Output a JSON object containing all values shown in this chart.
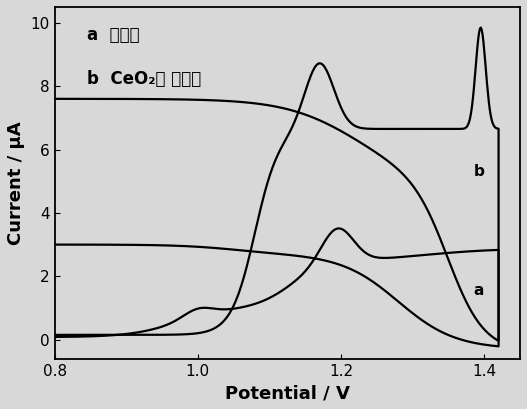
{
  "xlabel": "Potential / V",
  "ylabel": "Current / μA",
  "xlim": [
    0.8,
    1.45
  ],
  "ylim": [
    -0.6,
    10.5
  ],
  "xticks": [
    0.8,
    1.0,
    1.2,
    1.4
  ],
  "yticks": [
    0,
    2,
    4,
    6,
    8,
    10
  ],
  "background_color": "#d8d8d8",
  "label_a": "a  裸电极",
  "label_b": "b  CeO₂修 饰电极",
  "annotation_a": "a",
  "annotation_b": "b",
  "line_color": "#000000",
  "fontsize_axis_label": 13,
  "fontsize_tick": 11,
  "fontsize_annotation": 11,
  "fontsize_legend": 12
}
